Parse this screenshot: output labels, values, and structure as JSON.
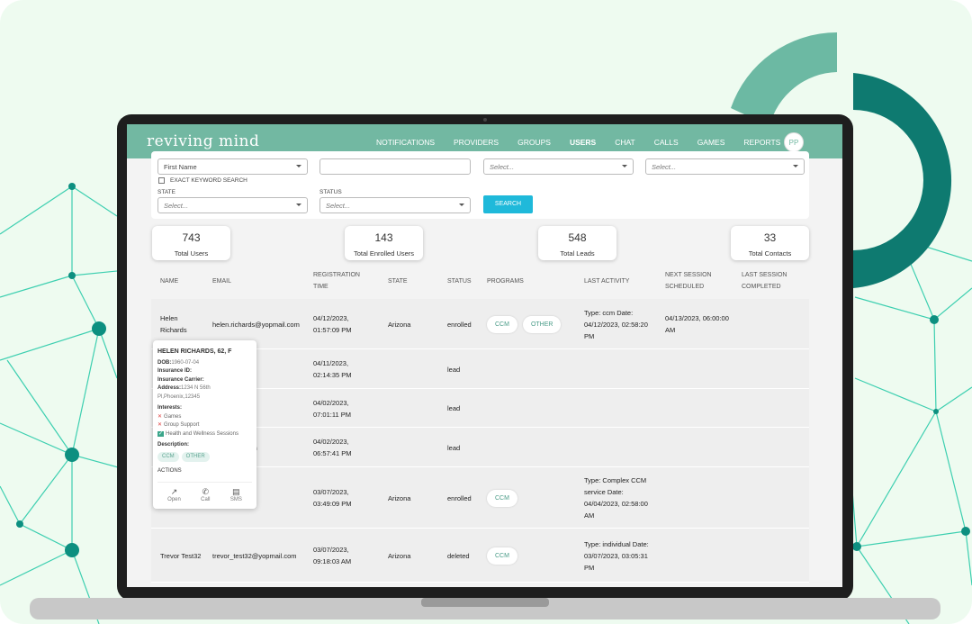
{
  "header": {
    "brand": "reviving mind",
    "nav": [
      "NOTIFICATIONS",
      "PROVIDERS",
      "GROUPS",
      "USERS",
      "CHAT",
      "CALLS",
      "GAMES",
      "REPORTS"
    ],
    "avatar": "PP"
  },
  "filters": {
    "field1": "First Name",
    "field3": "Select...",
    "field4": "Select...",
    "exact_keyword": "EXACT KEYWORD SEARCH",
    "state_label": "STATE",
    "state_placeholder": "Select...",
    "status_label": "STATUS",
    "status_placeholder": "Select...",
    "search_button": "SEARCH"
  },
  "stats": [
    {
      "value": 743,
      "label": "Total Users"
    },
    {
      "value": 143,
      "label": "Total Enrolled Users"
    },
    {
      "value": 548,
      "label": "Total Leads"
    },
    {
      "value": 33,
      "label": "Total Contacts"
    }
  ],
  "table": {
    "columns": [
      "NAME",
      "EMAIL",
      "REGISTRATION TIME",
      "STATE",
      "STATUS",
      "PROGRAMS",
      "LAST ACTIVITY",
      "NEXT SESSION SCHEDULED",
      "LAST SESSION COMPLETED"
    ],
    "rows": [
      {
        "name": "Helen Richards",
        "email": "helen.richards@yopmail.com",
        "registration": "04/12/2023, 01:57:09 PM",
        "state": "Arizona",
        "status": "enrolled",
        "programs": [
          "CCM",
          "OTHER"
        ],
        "last_activity": "Type: ccm Date: 04/12/2023, 02:58:20 PM",
        "next_session": "04/13/2023, 06:00:00 AM"
      },
      {
        "email": "yopmail.com",
        "registration": "04/11/2023, 02:14:35 PM",
        "status": "lead"
      },
      {
        "email": "opmail.com",
        "registration": "04/02/2023, 07:01:11 PM",
        "status": "lead"
      },
      {
        "email": "@yopmail.com",
        "registration": "04/02/2023, 06:57:41 PM",
        "status": "lead"
      },
      {
        "email": "yopmail.com",
        "registration": "03/07/2023, 03:49:09 PM",
        "state": "Arizona",
        "status": "enrolled",
        "programs": [
          "CCM"
        ],
        "last_activity": "Type: Complex CCM service Date: 04/04/2023, 02:58:00 AM"
      },
      {
        "name": "Trevor Test32",
        "email": "trevor_test32@yopmail.com",
        "registration": "03/07/2023, 09:18:03 AM",
        "state": "Arizona",
        "status": "deleted",
        "programs": [
          "CCM"
        ],
        "last_activity": "Type: individual Date: 03/07/2023, 03:05:31 PM"
      }
    ]
  },
  "popup": {
    "title": "HELEN RICHARDS, 62, F",
    "dob_label": "DOB:",
    "dob": "1960-07-04",
    "insurance_id_label": "Insurance ID:",
    "insurance_carrier_label": "Insurance Carrier:",
    "address_label": "Address:",
    "address": "1234 N 56th Pl,Phoenix,12345",
    "interests_label": "Interests:",
    "interests": [
      "Games",
      "Group Support",
      "Health and Wellness Sessions"
    ],
    "description_label": "Description:",
    "programs": [
      "CCM",
      "OTHER"
    ],
    "actions_label": "ACTIONS",
    "actions": [
      "Open",
      "Call",
      "SMS"
    ]
  }
}
